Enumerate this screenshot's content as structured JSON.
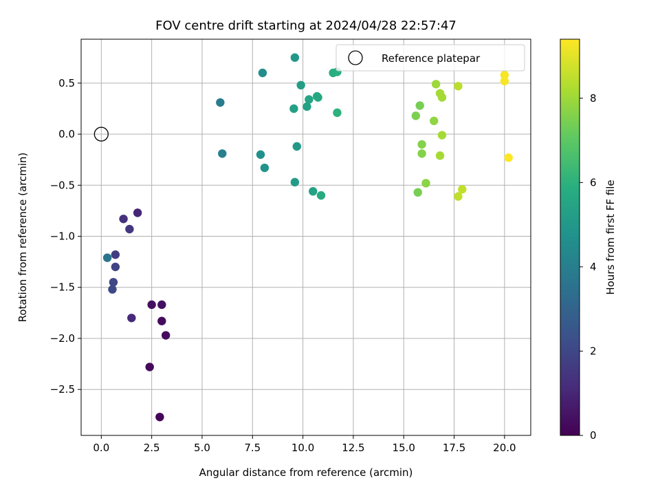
{
  "chart_data": {
    "type": "scatter",
    "title": "FOV centre drift starting at 2024/04/28 22:57:47",
    "xlabel": "Angular distance from reference (arcmin)",
    "ylabel": "Rotation from reference (arcmin)",
    "xlim": [
      -1.0,
      21.3
    ],
    "ylim": [
      -2.95,
      0.93
    ],
    "xticks": [
      0.0,
      2.5,
      5.0,
      7.5,
      10.0,
      12.5,
      15.0,
      17.5,
      20.0
    ],
    "xtick_labels": [
      "0.0",
      "2.5",
      "5.0",
      "7.5",
      "10.0",
      "12.5",
      "15.0",
      "17.5",
      "20.0"
    ],
    "yticks": [
      -2.5,
      -2.0,
      -1.5,
      -1.0,
      -0.5,
      0.0,
      0.5
    ],
    "ytick_labels": [
      "−2.5",
      "−2.0",
      "−1.5",
      "−1.0",
      "−0.5",
      "0.0",
      "0.5"
    ],
    "grid": true,
    "legend": {
      "position": "top-right",
      "label": "Reference platepar"
    },
    "reference_point": {
      "x": 0.0,
      "y": 0.0
    },
    "colorbar": {
      "label": "Hours from first FF file",
      "colormap": "viridis",
      "range": [
        0,
        9.4
      ],
      "ticks": [
        0,
        2,
        4,
        6,
        8
      ],
      "tick_labels": [
        "0",
        "2",
        "4",
        "6",
        "8"
      ]
    },
    "points": [
      {
        "x": 2.9,
        "y": -2.77,
        "h": 0.1
      },
      {
        "x": 2.4,
        "y": -2.28,
        "h": 0.2
      },
      {
        "x": 3.2,
        "y": -1.97,
        "h": 0.3
      },
      {
        "x": 3.0,
        "y": -1.83,
        "h": 0.3
      },
      {
        "x": 2.5,
        "y": -1.67,
        "h": 0.4
      },
      {
        "x": 3.0,
        "y": -1.67,
        "h": 0.4
      },
      {
        "x": 1.5,
        "y": -1.8,
        "h": 1.1
      },
      {
        "x": 1.8,
        "y": -0.77,
        "h": 1.0
      },
      {
        "x": 1.1,
        "y": -0.83,
        "h": 1.3
      },
      {
        "x": 1.4,
        "y": -0.93,
        "h": 1.5
      },
      {
        "x": 0.7,
        "y": -1.18,
        "h": 1.7
      },
      {
        "x": 0.7,
        "y": -1.3,
        "h": 1.9
      },
      {
        "x": 0.6,
        "y": -1.45,
        "h": 2.0
      },
      {
        "x": 0.55,
        "y": -1.52,
        "h": 2.1
      },
      {
        "x": 0.3,
        "y": -1.21,
        "h": 3.6
      },
      {
        "x": 5.9,
        "y": 0.31,
        "h": 3.9
      },
      {
        "x": 6.0,
        "y": -0.19,
        "h": 4.0
      },
      {
        "x": 8.0,
        "y": 0.6,
        "h": 4.6
      },
      {
        "x": 7.9,
        "y": -0.2,
        "h": 4.7
      },
      {
        "x": 8.1,
        "y": -0.33,
        "h": 4.8
      },
      {
        "x": 9.6,
        "y": 0.75,
        "h": 5.0
      },
      {
        "x": 9.7,
        "y": -0.12,
        "h": 5.0
      },
      {
        "x": 9.6,
        "y": -0.47,
        "h": 5.1
      },
      {
        "x": 9.9,
        "y": 0.48,
        "h": 5.2
      },
      {
        "x": 9.55,
        "y": 0.25,
        "h": 5.3
      },
      {
        "x": 10.2,
        "y": 0.27,
        "h": 5.4
      },
      {
        "x": 10.3,
        "y": 0.34,
        "h": 5.5
      },
      {
        "x": 10.5,
        "y": -0.56,
        "h": 5.4
      },
      {
        "x": 10.7,
        "y": 0.37,
        "h": 5.6
      },
      {
        "x": 10.75,
        "y": 0.36,
        "h": 5.6
      },
      {
        "x": 10.9,
        "y": -0.6,
        "h": 5.7
      },
      {
        "x": 11.5,
        "y": 0.6,
        "h": 5.8
      },
      {
        "x": 11.7,
        "y": 0.61,
        "h": 5.9
      },
      {
        "x": 11.7,
        "y": 0.21,
        "h": 6.0
      },
      {
        "x": 15.6,
        "y": 0.18,
        "h": 7.5
      },
      {
        "x": 15.8,
        "y": 0.28,
        "h": 7.4
      },
      {
        "x": 15.9,
        "y": -0.19,
        "h": 7.6
      },
      {
        "x": 15.9,
        "y": -0.1,
        "h": 7.6
      },
      {
        "x": 15.7,
        "y": -0.57,
        "h": 7.4
      },
      {
        "x": 16.1,
        "y": -0.48,
        "h": 7.7
      },
      {
        "x": 16.5,
        "y": 0.13,
        "h": 7.8
      },
      {
        "x": 16.6,
        "y": 0.49,
        "h": 8.0
      },
      {
        "x": 16.8,
        "y": 0.4,
        "h": 8.1
      },
      {
        "x": 16.9,
        "y": 0.36,
        "h": 8.1
      },
      {
        "x": 16.9,
        "y": -0.01,
        "h": 8.1
      },
      {
        "x": 16.8,
        "y": -0.21,
        "h": 8.1
      },
      {
        "x": 17.7,
        "y": 0.47,
        "h": 8.4
      },
      {
        "x": 17.7,
        "y": -0.61,
        "h": 8.5
      },
      {
        "x": 17.9,
        "y": -0.54,
        "h": 8.5
      },
      {
        "x": 20.0,
        "y": 0.58,
        "h": 9.3
      },
      {
        "x": 20.0,
        "y": 0.52,
        "h": 9.3
      },
      {
        "x": 20.2,
        "y": -0.23,
        "h": 9.4
      }
    ]
  }
}
